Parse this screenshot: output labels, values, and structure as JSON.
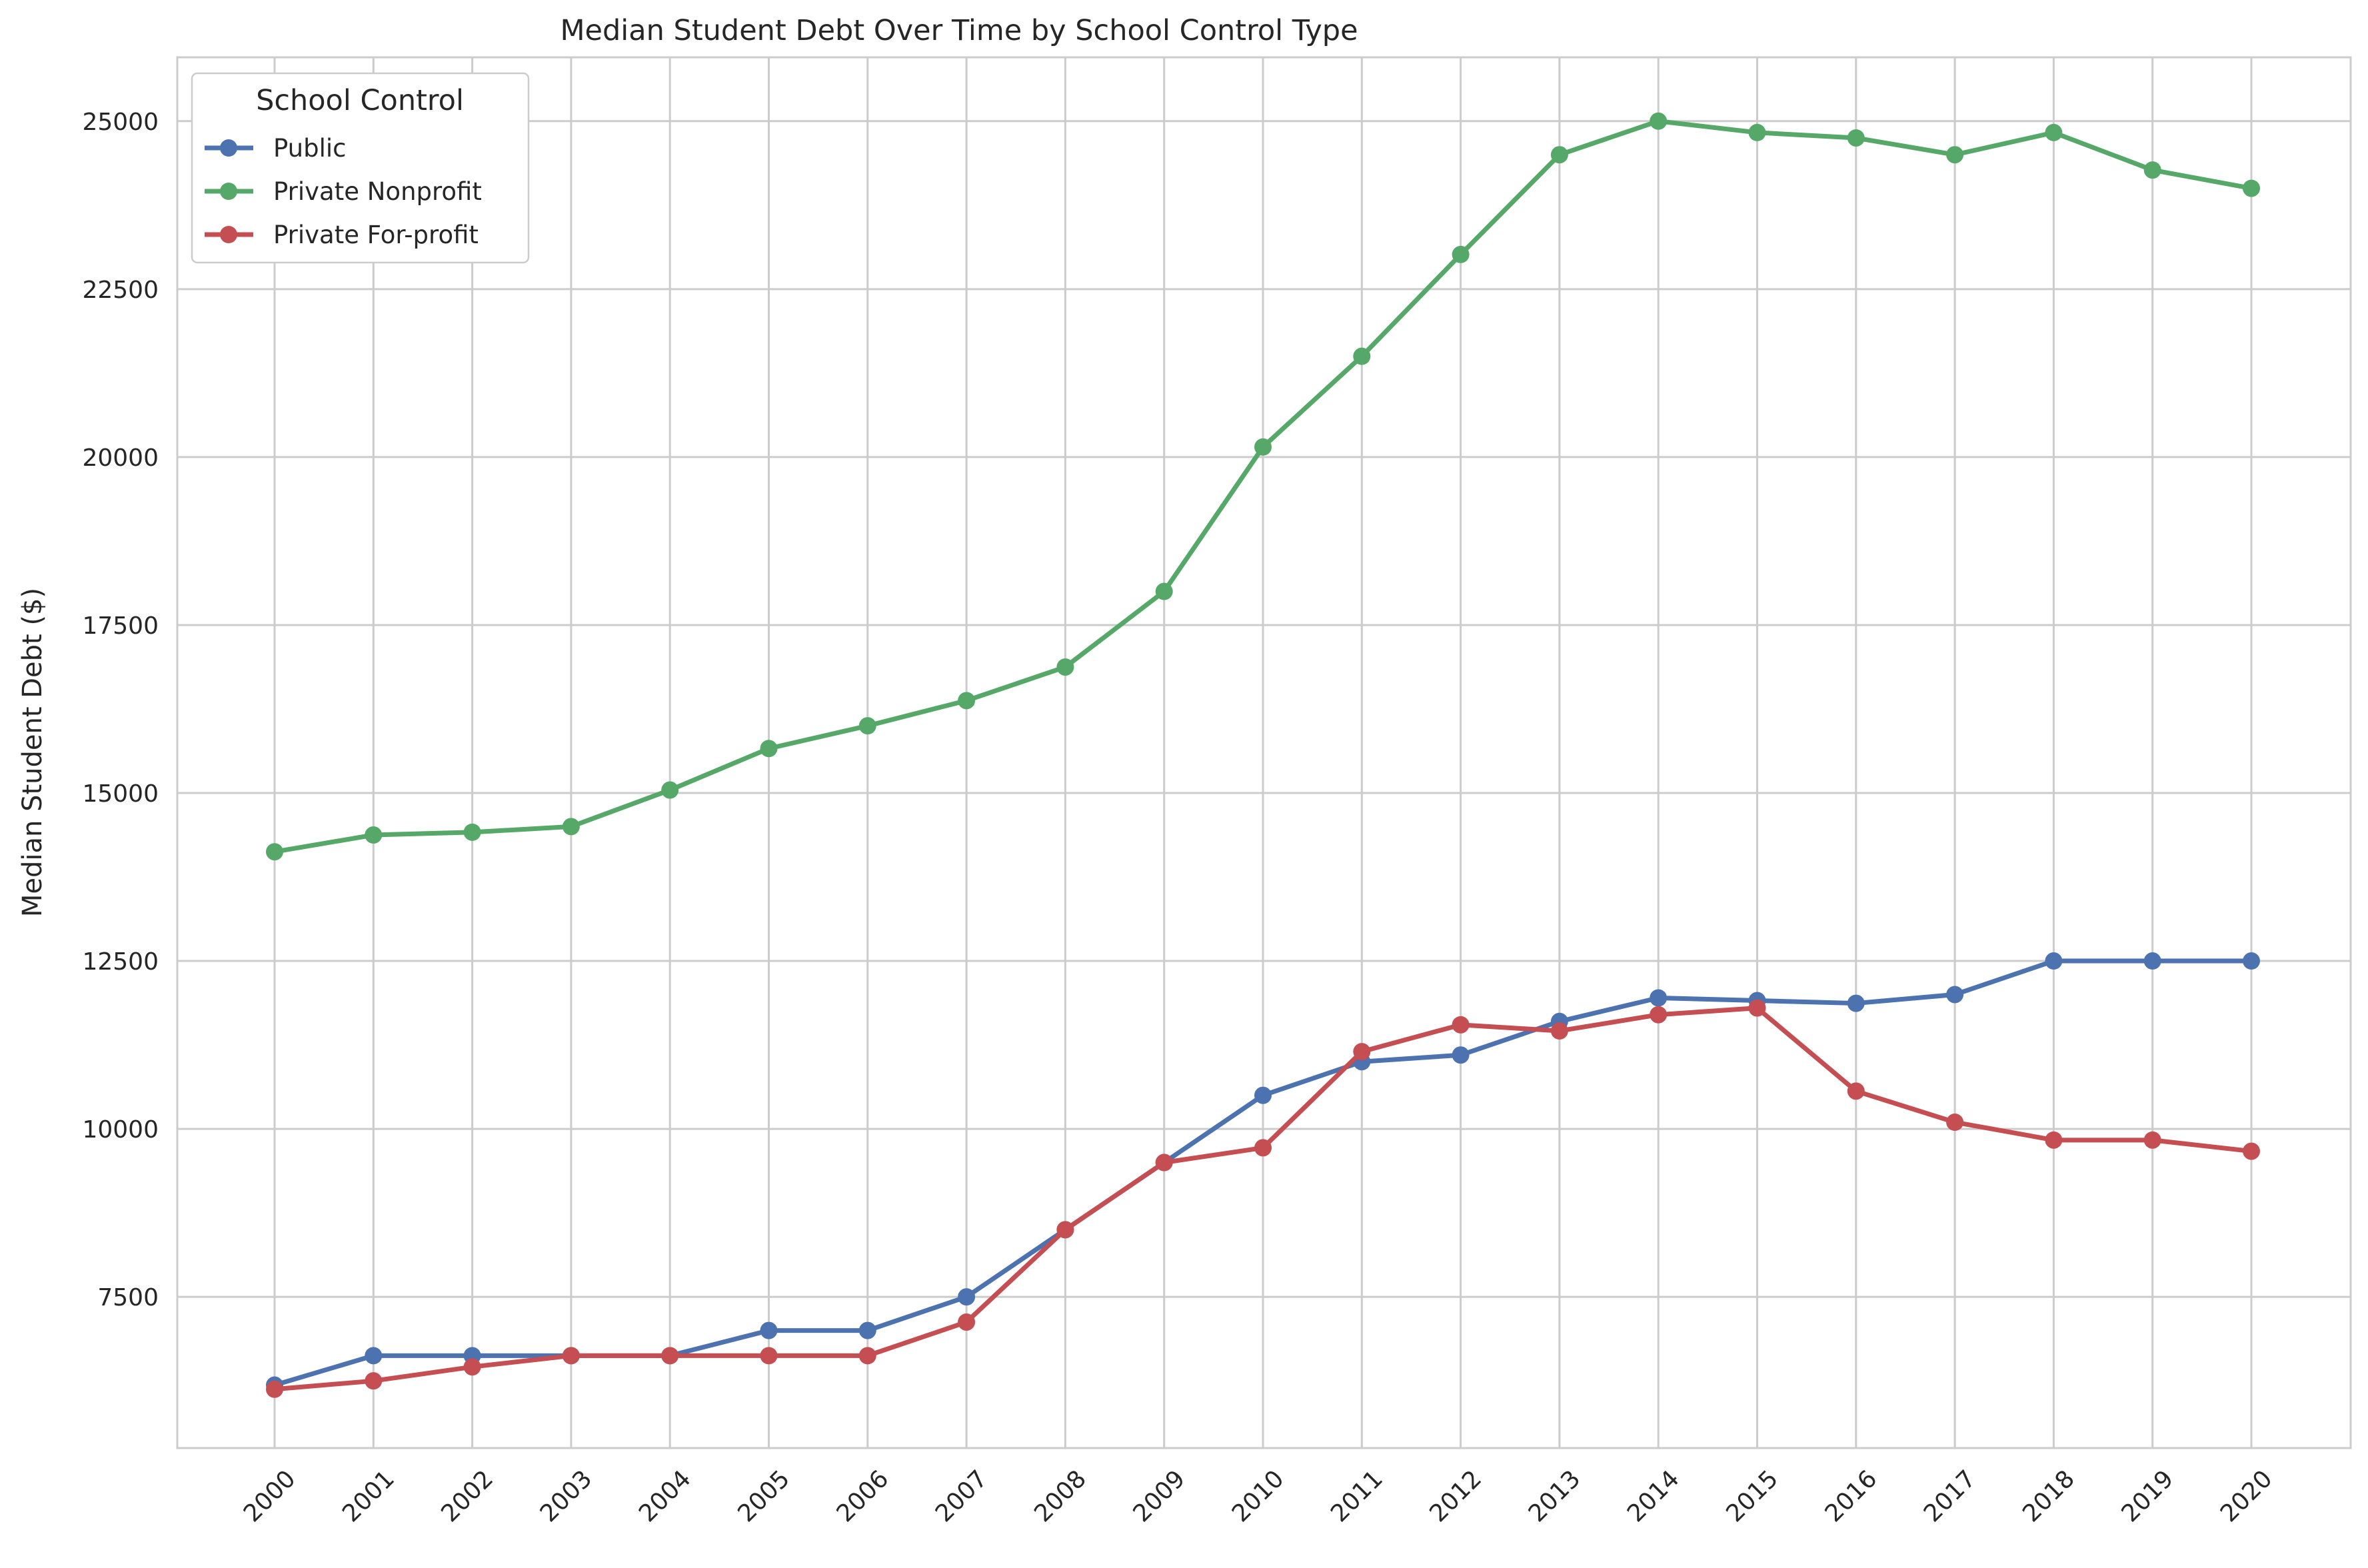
{
  "chart_data": {
    "type": "line",
    "title": "Median Student Debt Over Time by School Control Type",
    "xlabel": "",
    "ylabel": "Median Student Debt ($)",
    "x": [
      "2000",
      "2001",
      "2002",
      "2003",
      "2004",
      "2005",
      "2006",
      "2007",
      "2008",
      "2009",
      "2010",
      "2011",
      "2012",
      "2013",
      "2014",
      "2015",
      "2016",
      "2017",
      "2018",
      "2019",
      "2020"
    ],
    "ylim": [
      5250,
      25950
    ],
    "yticks": [
      7500,
      10000,
      12500,
      15000,
      17500,
      20000,
      22500,
      25000
    ],
    "ytick_labels": [
      "7500",
      "10000",
      "12500",
      "15000",
      "17500",
      "20000",
      "22500",
      "25000"
    ],
    "grid": true,
    "legend": {
      "title": "School Control",
      "placement": "top-left"
    },
    "series": [
      {
        "name": "Public",
        "color": "#4c72b0",
        "values": [
          6187,
          6625,
          6625,
          6625,
          6625,
          7000,
          7000,
          7500,
          8500,
          9500,
          10500,
          11000,
          11100,
          11600,
          11950,
          11910,
          11870,
          12000,
          12500,
          12500,
          12500
        ]
      },
      {
        "name": "Private Nonprofit",
        "color": "#55a868",
        "values": [
          14125,
          14375,
          14416,
          14500,
          15044,
          15662,
          16000,
          16375,
          16875,
          18000,
          20150,
          21500,
          23015,
          24500,
          25000,
          24830,
          24750,
          24500,
          24830,
          24272,
          24000
        ]
      },
      {
        "name": "Private For-profit",
        "color": "#c44e52",
        "values": [
          6125,
          6250,
          6458,
          6625,
          6625,
          6625,
          6625,
          7125,
          8500,
          9500,
          9719,
          11150,
          11550,
          11459,
          11700,
          11800,
          10563,
          10100,
          9834,
          9834,
          9668
        ]
      }
    ]
  }
}
